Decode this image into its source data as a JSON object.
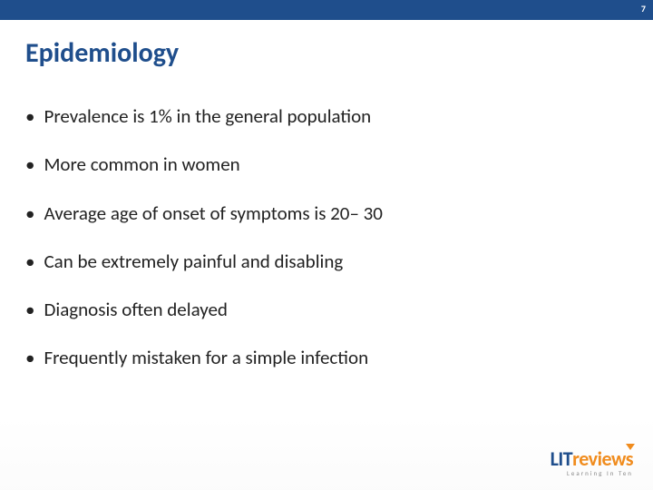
{
  "header": {
    "page_number": "7",
    "bar_color": "#1f4e8c"
  },
  "title": "Epidemiology",
  "title_color": "#1f4e8c",
  "bullets": [
    "Prevalence is 1% in the general population",
    "More common in women",
    "Average age of onset of symptoms is 20– 30",
    "Can be extremely painful and disabling",
    "Diagnosis often delayed",
    "Frequently mistaken for a simple infection"
  ],
  "text_color": "#222222",
  "body_fontsize": 21,
  "title_fontsize": 30,
  "logo": {
    "prefix": "LIT",
    "suffix": "reviews",
    "tagline": "Learning In Ten",
    "prefix_color": "#1f4e8c",
    "suffix_color": "#f08c1e"
  }
}
